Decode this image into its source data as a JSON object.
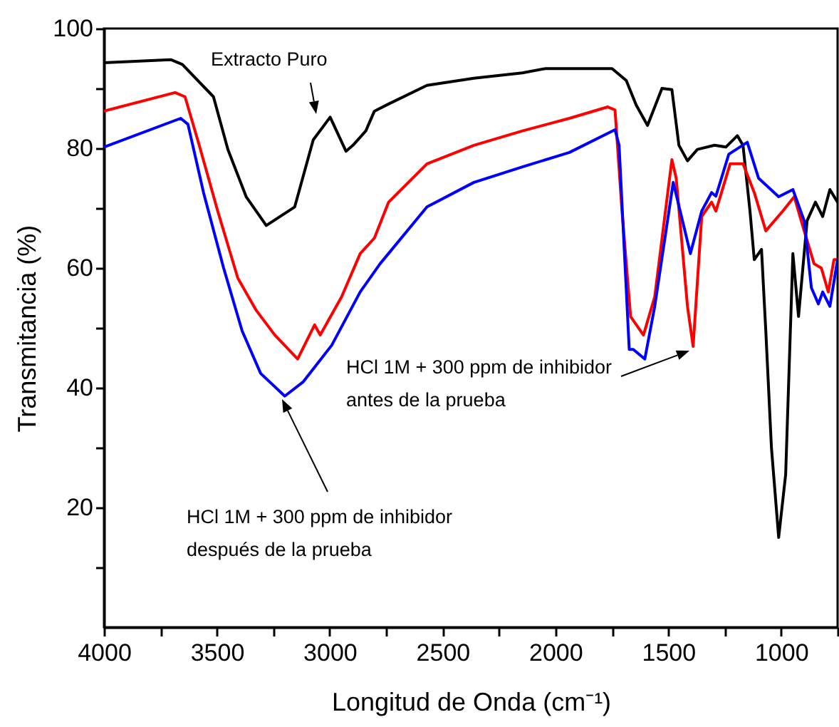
{
  "chart_data": {
    "type": "line",
    "xlabel": "Longitud de Onda (cm⁻¹)",
    "ylabel": "Transmitancia (%)",
    "xlim": [
      4000,
      750
    ],
    "ylim": [
      0,
      100
    ],
    "xticks": [
      4000,
      {
        "value": 3750,
        "label": null
      },
      3500,
      {
        "value": 3250,
        "label": null
      },
      3000,
      {
        "value": 2750,
        "label": null
      },
      2500,
      {
        "value": 2250,
        "label": null
      },
      2000,
      {
        "value": 1750,
        "label": null
      },
      1500,
      {
        "value": 1250,
        "label": null
      },
      1000,
      {
        "value": 750,
        "label": null
      }
    ],
    "yticks": [
      {
        "value": 10,
        "label": null
      },
      20,
      {
        "value": 30,
        "label": null
      },
      40,
      {
        "value": 50,
        "label": null
      },
      60,
      {
        "value": 70,
        "label": null
      },
      80,
      {
        "value": 90,
        "label": null
      },
      100
    ],
    "grid": false,
    "line_style": "solid",
    "series": [
      {
        "color": "#000000",
        "x": [
          4000,
          3704,
          3653,
          3515,
          3451,
          3370,
          3281,
          3155,
          3073,
          2998,
          2928,
          2897,
          2840,
          2802,
          2739,
          2569,
          2361,
          2146,
          2045,
          1749,
          1686,
          1642,
          1592,
          1528,
          1484,
          1453,
          1415,
          1371,
          1295,
          1245,
          1194,
          1169,
          1138,
          1119,
          1087,
          1068,
          1043,
          1011,
          980,
          948,
          923,
          885,
          848,
          816,
          784,
          750
        ],
        "values": [
          94.3,
          94.8,
          94,
          88.6,
          79.8,
          71.9,
          67.1,
          70.2,
          81.4,
          85.2,
          79.5,
          80.5,
          82.9,
          86.2,
          87.4,
          90.5,
          91.7,
          92.6,
          93.3,
          93.3,
          91.3,
          87.2,
          83.8,
          90,
          89.8,
          80.5,
          77.9,
          79.8,
          80.5,
          80.2,
          82.1,
          80.5,
          69.5,
          61.4,
          63.1,
          49.5,
          30,
          15,
          25.5,
          62.4,
          51.9,
          67.9,
          71,
          68.6,
          73.1,
          71
        ]
      },
      {
        "color": "#ff0000",
        "x": [
          4000,
          3685,
          3641,
          3578,
          3496,
          3407,
          3325,
          3243,
          3142,
          3067,
          3042,
          2947,
          2865,
          2802,
          2739,
          2569,
          2361,
          2146,
          1938,
          1768,
          1736,
          1705,
          1667,
          1610,
          1560,
          1484,
          1465,
          1415,
          1390,
          1352,
          1308,
          1289,
          1226,
          1169,
          1119,
          1068,
          993,
          942,
          898,
          854,
          822,
          791,
          766,
          750
        ],
        "values": [
          86.2,
          89.3,
          88.6,
          80.5,
          69.5,
          58.3,
          52.9,
          48.8,
          44.8,
          50.5,
          48.8,
          55.2,
          62.4,
          65,
          71,
          77.4,
          80.5,
          82.9,
          85,
          86.9,
          86.4,
          69.5,
          51.9,
          48.8,
          55.2,
          78.1,
          75,
          53.6,
          46.9,
          68.6,
          71,
          69.5,
          77.4,
          77.4,
          72.6,
          66.2,
          69.5,
          71.9,
          66.2,
          60.7,
          60,
          56,
          61.4,
          61.4
        ]
      },
      {
        "color": "#0000ff",
        "x": [
          4000,
          3660,
          3628,
          3559,
          3470,
          3388,
          3306,
          3199,
          3117,
          2991,
          2865,
          2777,
          2569,
          2361,
          2146,
          1938,
          1736,
          1718,
          1673,
          1655,
          1604,
          1560,
          1478,
          1402,
          1352,
          1308,
          1289,
          1232,
          1150,
          1100,
          1011,
          948,
          898,
          866,
          835,
          816,
          784,
          750
        ],
        "values": [
          80.2,
          85,
          84,
          72.6,
          60,
          49.5,
          42.4,
          38.6,
          41,
          47.1,
          56,
          60.7,
          70.2,
          74.3,
          76.9,
          79.3,
          83.1,
          80.5,
          46.4,
          46.4,
          44.8,
          53.6,
          74.3,
          62.4,
          69.5,
          72.6,
          72,
          79,
          81,
          75,
          71.9,
          73.1,
          67.9,
          56.7,
          54,
          56,
          53.6,
          61.4
        ]
      }
    ],
    "annotations": [
      "Extracto Puro",
      "HCl 1M + 300 ppm de inhibidor\nantes de la prueba",
      "HCl 1M + 300 ppm de inhibidor\ndespués de la prueba"
    ]
  }
}
